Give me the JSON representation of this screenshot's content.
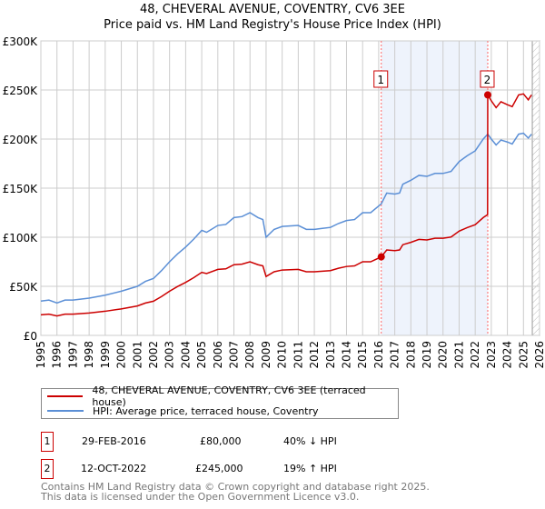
{
  "title": "48, CHEVERAL AVENUE, COVENTRY, CV6 3EE",
  "subtitle": "Price paid vs. HM Land Registry's House Price Index (HPI)",
  "chart_data": {
    "type": "line",
    "title": "48, CHEVERAL AVENUE, COVENTRY, CV6 3EE",
    "subtitle": "Price paid vs. HM Land Registry's House Price Index (HPI)",
    "xlim": [
      1995,
      2026
    ],
    "ylim": [
      0,
      300000
    ],
    "x_ticks": [
      "1995",
      "1996",
      "1997",
      "1998",
      "1999",
      "2000",
      "2001",
      "2002",
      "2003",
      "2004",
      "2005",
      "2006",
      "2007",
      "2008",
      "2009",
      "2010",
      "2011",
      "2012",
      "2013",
      "2014",
      "2015",
      "2016",
      "2017",
      "2018",
      "2019",
      "2020",
      "2021",
      "2022",
      "2023",
      "2024",
      "2025",
      "2026"
    ],
    "y_ticks": [
      {
        "v": 0,
        "label": "£0"
      },
      {
        "v": 50000,
        "label": "£50K"
      },
      {
        "v": 100000,
        "label": "£100K"
      },
      {
        "v": 150000,
        "label": "£150K"
      },
      {
        "v": 200000,
        "label": "£200K"
      },
      {
        "v": 250000,
        "label": "£250K"
      },
      {
        "v": 300000,
        "label": "£300K"
      }
    ],
    "grid": true,
    "series": [
      {
        "name": "48, CHEVERAL AVENUE, COVENTRY, CV6 3EE (terraced house)",
        "color": "#cc0000",
        "x": [
          1995,
          1995.5,
          1996,
          1996.5,
          1997,
          1998,
          1999,
          2000,
          2001,
          2001.5,
          2002,
          2002.5,
          2003,
          2003.5,
          2004,
          2004.5,
          2005,
          2005.3,
          2006,
          2006.5,
          2007,
          2007.5,
          2008,
          2008.5,
          2008.8,
          2009,
          2009.5,
          2010,
          2011,
          2011.5,
          2012,
          2012.5,
          2013,
          2013.5,
          2014,
          2014.5,
          2015,
          2015.5,
          2016.16,
          2016.5,
          2017,
          2017.3,
          2017.5,
          2018,
          2018.5,
          2019,
          2019.5,
          2020,
          2020.5,
          2021,
          2021.5,
          2022,
          2022.5,
          2022.77,
          2022.78,
          2023,
          2023.3,
          2023.6,
          2024,
          2024.3,
          2024.7,
          2025,
          2025.3,
          2025.5
        ],
        "y": [
          21000,
          21600,
          19800,
          21600,
          21600,
          22800,
          24600,
          27000,
          30000,
          33000,
          34800,
          39600,
          45000,
          49800,
          54000,
          58800,
          64200,
          63000,
          67200,
          67800,
          72000,
          72600,
          75000,
          72000,
          70800,
          60000,
          64800,
          66600,
          67200,
          64800,
          64800,
          65400,
          66000,
          68400,
          70200,
          70800,
          75000,
          75000,
          80000,
          87000,
          86400,
          87000,
          92400,
          94800,
          97800,
          97200,
          99000,
          99000,
          100200,
          106200,
          109800,
          112800,
          120000,
          123000,
          245000,
          239000,
          232000,
          238000,
          235000,
          233000,
          245000,
          246000,
          240000,
          245000
        ]
      },
      {
        "name": "HPI: Average price, terraced house, Coventry",
        "color": "#5b8fd6",
        "x": [
          1995,
          1995.5,
          1996,
          1996.5,
          1997,
          1998,
          1999,
          2000,
          2001,
          2001.5,
          2002,
          2002.5,
          2003,
          2003.5,
          2004,
          2004.5,
          2005,
          2005.3,
          2006,
          2006.5,
          2007,
          2007.5,
          2008,
          2008.5,
          2008.8,
          2009,
          2009.5,
          2010,
          2011,
          2011.5,
          2012,
          2012.5,
          2013,
          2013.5,
          2014,
          2014.5,
          2015,
          2015.5,
          2016.16,
          2016.5,
          2017,
          2017.3,
          2017.5,
          2018,
          2018.5,
          2019,
          2019.5,
          2020,
          2020.5,
          2021,
          2021.5,
          2022,
          2022.5,
          2022.78,
          2023,
          2023.3,
          2023.6,
          2024,
          2024.3,
          2024.7,
          2025,
          2025.3,
          2025.5
        ],
        "y": [
          35000,
          36000,
          33000,
          36000,
          36000,
          38000,
          41000,
          45000,
          50000,
          55000,
          58000,
          66000,
          75000,
          83000,
          90000,
          98000,
          107000,
          105000,
          112000,
          113000,
          120000,
          121000,
          125000,
          120000,
          118000,
          100000,
          108000,
          111000,
          112000,
          108000,
          108000,
          109000,
          110000,
          114000,
          117000,
          118000,
          125000,
          125000,
          134000,
          145000,
          144000,
          145000,
          154000,
          158000,
          163000,
          162000,
          165000,
          165000,
          167000,
          177000,
          183000,
          188000,
          200000,
          205000,
          200000,
          194000,
          199000,
          197000,
          195000,
          205000,
          206000,
          201000,
          205000
        ]
      }
    ],
    "sales": [
      {
        "label": "1",
        "x": 2016.16,
        "y": 80000,
        "date": "29-FEB-2016",
        "price": "£80,000",
        "hpi": "40% ↓ HPI"
      },
      {
        "label": "2",
        "x": 2022.78,
        "y": 245000,
        "date": "12-OCT-2022",
        "price": "£245,000",
        "hpi": "19% ↑ HPI"
      }
    ],
    "forecast_from": 2025.55,
    "legend_position": "below"
  },
  "footer": {
    "line1": "Contains HM Land Registry data © Crown copyright and database right 2025.",
    "line2": "This data is licensed under the Open Government Licence v3.0."
  }
}
